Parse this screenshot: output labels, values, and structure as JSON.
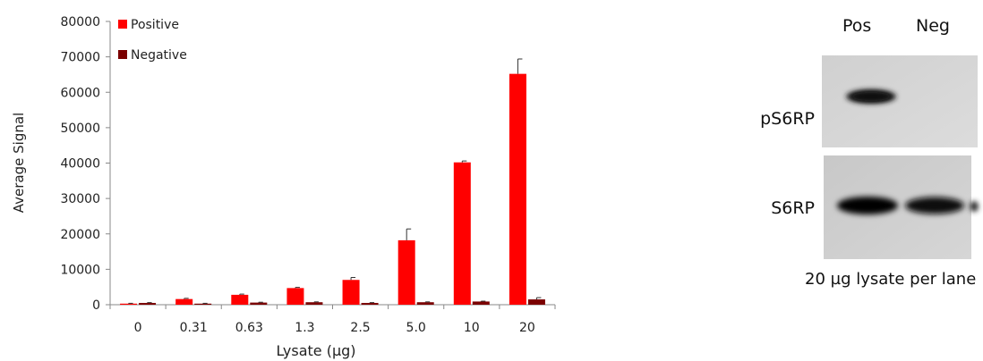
{
  "chart_data": {
    "type": "bar",
    "title": "",
    "xlabel": "Lysate (µg)",
    "ylabel": "Average Signal",
    "ylim": [
      0,
      80000
    ],
    "yticks": [
      "0",
      "10000",
      "20000",
      "30000",
      "40000",
      "50000",
      "60000",
      "70000",
      "80000"
    ],
    "categories": [
      "0",
      "0.31",
      "0.63",
      "1.3",
      "2.5",
      "5.0",
      "10",
      "20"
    ],
    "series": [
      {
        "name": "Positive",
        "color": "#ff0000",
        "values": [
          300,
          1600,
          2800,
          4700,
          7000,
          18200,
          40200,
          65200
        ],
        "errors": [
          100,
          200,
          200,
          200,
          700,
          3200,
          400,
          4200
        ]
      },
      {
        "name": "Negative",
        "color": "#7b0000",
        "values": [
          500,
          300,
          600,
          700,
          500,
          700,
          900,
          1500
        ],
        "errors": [
          100,
          100,
          100,
          100,
          100,
          100,
          100,
          500
        ]
      }
    ],
    "grid": false,
    "legend_position": "top-left"
  },
  "blot": {
    "lanes": [
      "Pos",
      "Neg"
    ],
    "rows": [
      "pS6RP",
      "S6RP"
    ],
    "caption": "20 µg lysate per lane"
  }
}
